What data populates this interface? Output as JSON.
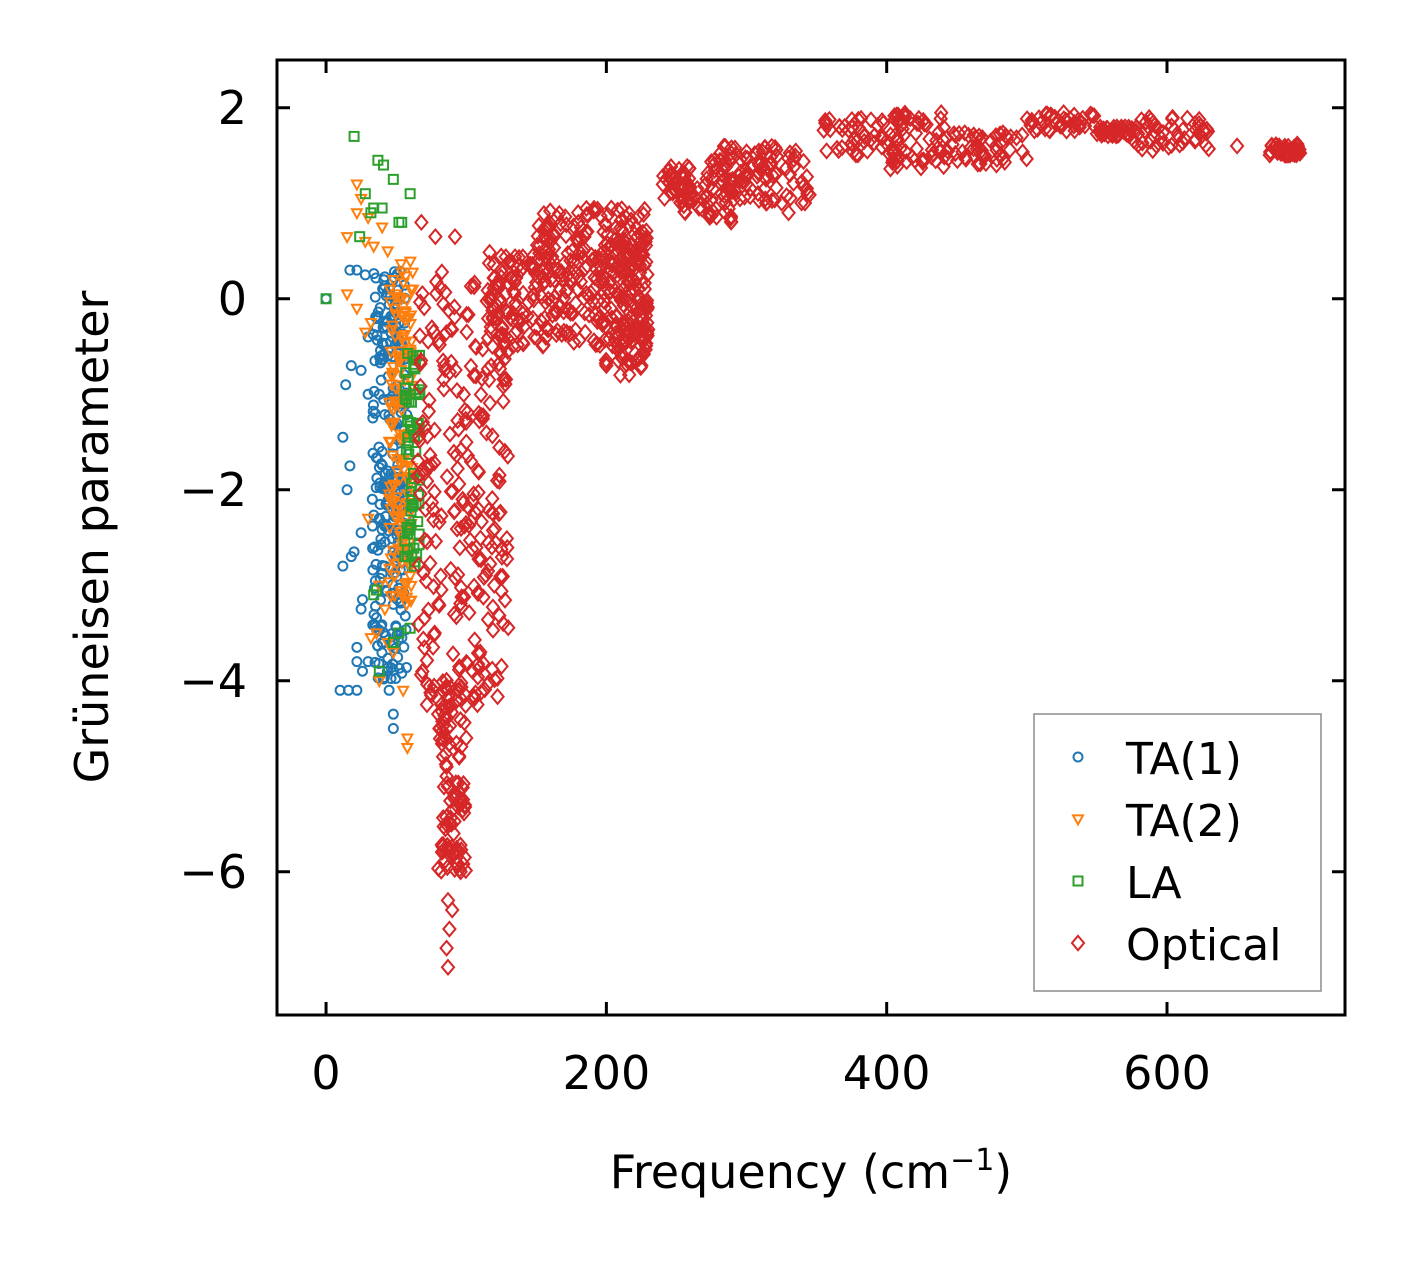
{
  "chart_data": {
    "type": "scatter",
    "title": "",
    "xlabel": "Frequency (cm",
    "xlabel_sup": "−1",
    "xlabel_close": ")",
    "ylabel": "Grüneisen parameter",
    "xlim": [
      -35,
      727
    ],
    "ylim": [
      -7.5,
      2.5
    ],
    "xticks": [
      0,
      200,
      400,
      600
    ],
    "xtick_labels": [
      "0",
      "200",
      "400",
      "600"
    ],
    "yticks": [
      2,
      0,
      -2,
      -4,
      -6
    ],
    "ytick_labels": [
      "2",
      "0",
      "−2",
      "−4",
      "−6"
    ],
    "legend_position": "lower-right",
    "series": [
      {
        "name": "TA(1)",
        "marker": "circle",
        "color": "#1f77b4",
        "approx_points": [
          [
            0,
            0.0
          ],
          [
            17,
            0.3
          ],
          [
            22,
            0.3
          ],
          [
            18,
            -0.7
          ],
          [
            25,
            -0.75
          ],
          [
            14,
            -0.9
          ],
          [
            30,
            -0.4
          ],
          [
            12,
            -1.45
          ],
          [
            17,
            -1.75
          ],
          [
            15,
            -2.0
          ],
          [
            20,
            -2.65
          ],
          [
            18,
            -2.7
          ],
          [
            12,
            -2.8
          ],
          [
            25,
            -2.45
          ],
          [
            26,
            -3.15
          ],
          [
            25,
            -3.25
          ],
          [
            22,
            -3.65
          ],
          [
            22,
            -3.8
          ],
          [
            26,
            -3.9
          ],
          [
            30,
            -3.8
          ],
          [
            10,
            -4.1
          ],
          [
            16,
            -4.1
          ],
          [
            22,
            -4.1
          ],
          [
            48,
            -4.35
          ],
          [
            48,
            -4.5
          ],
          [
            40,
            -3.6
          ],
          [
            45,
            -4.1
          ],
          [
            35,
            -1.2
          ],
          [
            40,
            -1.6
          ],
          [
            45,
            -2.0
          ],
          [
            50,
            -1.8
          ],
          [
            38,
            -2.3
          ],
          [
            42,
            -2.8
          ],
          [
            48,
            -3.2
          ],
          [
            52,
            -3.5
          ],
          [
            36,
            -0.3
          ],
          [
            44,
            -0.6
          ],
          [
            50,
            -1.1
          ],
          [
            30,
            -1.0
          ],
          [
            33,
            -2.1
          ],
          [
            41,
            0.1
          ],
          [
            28,
            0.25
          ]
        ],
        "fill_band": {
          "x_range": [
            33,
            58
          ],
          "y_range": [
            -4.0,
            0.3
          ]
        }
      },
      {
        "name": "TA(2)",
        "marker": "triangle-down",
        "color": "#ff7f0e",
        "approx_points": [
          [
            22,
            1.2
          ],
          [
            25,
            1.05
          ],
          [
            22,
            0.9
          ],
          [
            30,
            0.85
          ],
          [
            15,
            0.65
          ],
          [
            28,
            0.6
          ],
          [
            34,
            0.55
          ],
          [
            40,
            0.75
          ],
          [
            44,
            0.5
          ],
          [
            15,
            0.05
          ],
          [
            22,
            -0.1
          ],
          [
            32,
            -0.25
          ],
          [
            28,
            -0.35
          ],
          [
            52,
            -0.6
          ],
          [
            30,
            -2.3
          ],
          [
            38,
            -3.0
          ],
          [
            42,
            -3.25
          ],
          [
            32,
            -3.55
          ],
          [
            36,
            -3.5
          ],
          [
            44,
            -3.6
          ],
          [
            38,
            -4.0
          ],
          [
            48,
            -3.7
          ],
          [
            55,
            -4.1
          ],
          [
            58,
            -4.6
          ],
          [
            58,
            -4.7
          ],
          [
            50,
            -2.3
          ],
          [
            46,
            -1.5
          ],
          [
            54,
            -1.0
          ],
          [
            60,
            -2.9
          ],
          [
            56,
            -2.6
          ],
          [
            62,
            0.1
          ],
          [
            48,
            0.2
          ]
        ],
        "fill_band": {
          "x_range": [
            45,
            62
          ],
          "y_range": [
            -3.2,
            0.4
          ]
        }
      },
      {
        "name": "LA",
        "marker": "square",
        "color": "#2ca02c",
        "approx_points": [
          [
            0,
            0.0
          ],
          [
            20,
            1.7
          ],
          [
            37,
            1.45
          ],
          [
            41,
            1.4
          ],
          [
            48,
            1.25
          ],
          [
            28,
            1.1
          ],
          [
            60,
            1.1
          ],
          [
            34,
            0.95
          ],
          [
            40,
            0.95
          ],
          [
            32,
            0.9
          ],
          [
            52,
            0.8
          ],
          [
            54,
            0.8
          ],
          [
            24,
            0.65
          ],
          [
            34,
            -3.1
          ],
          [
            36,
            -3.05
          ],
          [
            52,
            -3.5
          ],
          [
            60,
            -3.45
          ],
          [
            38,
            -3.9
          ],
          [
            48,
            -3.6
          ],
          [
            62,
            -0.6
          ],
          [
            64,
            -1.6
          ],
          [
            60,
            -2.4
          ],
          [
            63,
            -2.8
          ]
        ],
        "fill_band": {
          "x_range": [
            56,
            67
          ],
          "y_range": [
            -2.8,
            -0.5
          ]
        }
      },
      {
        "name": "Optical",
        "marker": "diamond",
        "color": "#d62728",
        "approx_points": [
          [
            78,
            0.65
          ],
          [
            92,
            0.65
          ],
          [
            68,
            0.8
          ],
          [
            80,
            -4.35
          ],
          [
            75,
            -4.15
          ],
          [
            72,
            -4.25
          ],
          [
            86,
            -4.9
          ],
          [
            88,
            -5.5
          ],
          [
            84,
            -5.9
          ],
          [
            92,
            -5.8
          ],
          [
            96,
            -6.0
          ],
          [
            87,
            -6.3
          ],
          [
            86,
            -6.8
          ],
          [
            87,
            -7.0
          ],
          [
            88,
            -6.6
          ],
          [
            90,
            -6.4
          ],
          [
            100,
            -4.6
          ],
          [
            108,
            -4.25
          ],
          [
            95,
            -4.8
          ],
          [
            92,
            -5.2
          ],
          [
            86,
            -5.0
          ],
          [
            91,
            -5.6
          ],
          [
            120,
            -3.0
          ],
          [
            110,
            -3.7
          ],
          [
            125,
            0.3
          ],
          [
            160,
            0.2
          ],
          [
            200,
            -0.7
          ],
          [
            210,
            -0.8
          ],
          [
            225,
            -0.7
          ],
          [
            180,
            0.8
          ],
          [
            300,
            1.2
          ],
          [
            330,
            0.9
          ],
          [
            260,
            1.1
          ],
          [
            470,
            1.5
          ],
          [
            520,
            1.9
          ],
          [
            585,
            1.85
          ],
          [
            620,
            1.65
          ],
          [
            680,
            1.6
          ],
          [
            690,
            1.55
          ],
          [
            650,
            1.6
          ],
          [
            420,
            1.45
          ]
        ],
        "bands": [
          {
            "x_range": [
              65,
              130
            ],
            "y_range": [
              -4.2,
              0.3
            ]
          },
          {
            "x_range": [
              80,
              100
            ],
            "y_range": [
              -6.0,
              -4.0
            ]
          },
          {
            "x_range": [
              115,
              150
            ],
            "y_range": [
              -0.5,
              0.5
            ]
          },
          {
            "x_range": [
              150,
              230
            ],
            "y_range": [
              -0.5,
              0.95
            ]
          },
          {
            "x_range": [
              195,
              230
            ],
            "y_range": [
              -0.8,
              0.6
            ]
          },
          {
            "x_range": [
              240,
              260
            ],
            "y_range": [
              1.0,
              1.4
            ]
          },
          {
            "x_range": [
              255,
              290
            ],
            "y_range": [
              0.8,
              1.2
            ]
          },
          {
            "x_range": [
              270,
              345
            ],
            "y_range": [
              1.0,
              1.6
            ]
          },
          {
            "x_range": [
              355,
              400
            ],
            "y_range": [
              1.5,
              1.9
            ]
          },
          {
            "x_range": [
              400,
              445
            ],
            "y_range": [
              1.35,
              1.95
            ]
          },
          {
            "x_range": [
              445,
              500
            ],
            "y_range": [
              1.4,
              1.75
            ]
          },
          {
            "x_range": [
              500,
              550
            ],
            "y_range": [
              1.75,
              1.95
            ]
          },
          {
            "x_range": [
              550,
              575
            ],
            "y_range": [
              1.7,
              1.8
            ]
          },
          {
            "x_range": [
              575,
              630
            ],
            "y_range": [
              1.55,
              1.9
            ]
          },
          {
            "x_range": [
              672,
              695
            ],
            "y_range": [
              1.5,
              1.62
            ]
          }
        ]
      }
    ]
  }
}
